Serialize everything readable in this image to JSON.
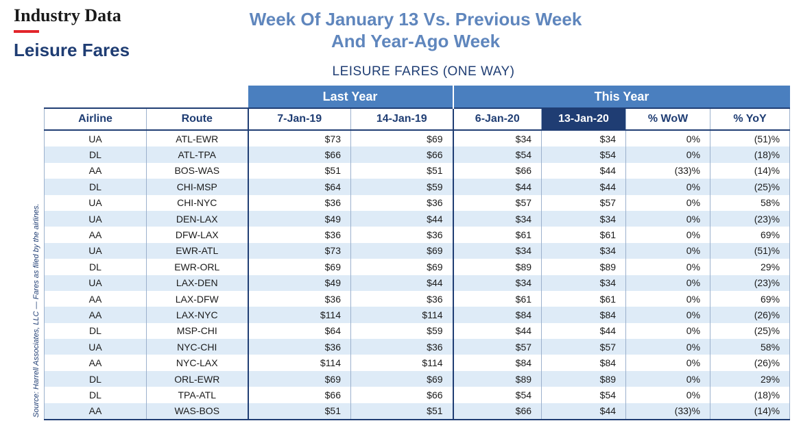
{
  "brand": "Industry Data",
  "section": "Leisure Fares",
  "headline": [
    "Week Of January 13 Vs. Previous Week",
    "And Year-Ago Week"
  ],
  "table_title": "LEISURE FARES (ONE WAY)",
  "source": "Source: Harrell Associates, LLC — Fares as filed by the airlines.",
  "colors": {
    "accent_red": "#e2252b",
    "navy": "#1f3d73",
    "header_blue": "#4a7fbf",
    "headline_blue": "#5f86bd",
    "stripe": "#deebf7"
  },
  "groups": {
    "last_year": "Last Year",
    "this_year": "This Year"
  },
  "columns": [
    "Airline",
    "Route",
    "7-Jan-19",
    "14-Jan-19",
    "6-Jan-20",
    "13-Jan-20",
    "% WoW",
    "% YoY"
  ],
  "rows": [
    [
      "UA",
      "ATL-EWR",
      "$73",
      "$69",
      "$34",
      "$34",
      "0%",
      "(51)%"
    ],
    [
      "DL",
      "ATL-TPA",
      "$66",
      "$66",
      "$54",
      "$54",
      "0%",
      "(18)%"
    ],
    [
      "AA",
      "BOS-WAS",
      "$51",
      "$51",
      "$66",
      "$44",
      "(33)%",
      "(14)%"
    ],
    [
      "DL",
      "CHI-MSP",
      "$64",
      "$59",
      "$44",
      "$44",
      "0%",
      "(25)%"
    ],
    [
      "UA",
      "CHI-NYC",
      "$36",
      "$36",
      "$57",
      "$57",
      "0%",
      "58%"
    ],
    [
      "UA",
      "DEN-LAX",
      "$49",
      "$44",
      "$34",
      "$34",
      "0%",
      "(23)%"
    ],
    [
      "AA",
      "DFW-LAX",
      "$36",
      "$36",
      "$61",
      "$61",
      "0%",
      "69%"
    ],
    [
      "UA",
      "EWR-ATL",
      "$73",
      "$69",
      "$34",
      "$34",
      "0%",
      "(51)%"
    ],
    [
      "DL",
      "EWR-ORL",
      "$69",
      "$69",
      "$89",
      "$89",
      "0%",
      "29%"
    ],
    [
      "UA",
      "LAX-DEN",
      "$49",
      "$44",
      "$34",
      "$34",
      "0%",
      "(23)%"
    ],
    [
      "AA",
      "LAX-DFW",
      "$36",
      "$36",
      "$61",
      "$61",
      "0%",
      "69%"
    ],
    [
      "AA",
      "LAX-NYC",
      "$114",
      "$114",
      "$84",
      "$84",
      "0%",
      "(26)%"
    ],
    [
      "DL",
      "MSP-CHI",
      "$64",
      "$59",
      "$44",
      "$44",
      "0%",
      "(25)%"
    ],
    [
      "UA",
      "NYC-CHI",
      "$36",
      "$36",
      "$57",
      "$57",
      "0%",
      "58%"
    ],
    [
      "AA",
      "NYC-LAX",
      "$114",
      "$114",
      "$84",
      "$84",
      "0%",
      "(26)%"
    ],
    [
      "DL",
      "ORL-EWR",
      "$69",
      "$69",
      "$89",
      "$89",
      "0%",
      "29%"
    ],
    [
      "DL",
      "TPA-ATL",
      "$66",
      "$66",
      "$54",
      "$54",
      "0%",
      "(18)%"
    ],
    [
      "AA",
      "WAS-BOS",
      "$51",
      "$51",
      "$66",
      "$44",
      "(33)%",
      "(14)%"
    ]
  ]
}
